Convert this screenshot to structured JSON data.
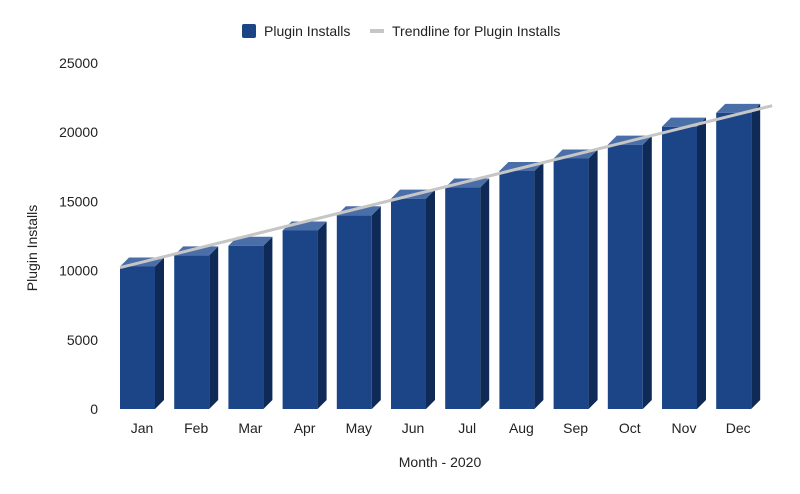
{
  "chart_data": {
    "type": "bar",
    "categories": [
      "Jan",
      "Feb",
      "Mar",
      "Apr",
      "May",
      "Jun",
      "Jul",
      "Aug",
      "Sep",
      "Oct",
      "Nov",
      "Dec"
    ],
    "series": [
      {
        "name": "Plugin Installs",
        "values": [
          10300,
          11100,
          11800,
          12900,
          14000,
          15200,
          16000,
          17200,
          18100,
          19100,
          20400,
          21400
        ]
      }
    ],
    "trendline": {
      "name": "Trendline for Plugin Installs",
      "start": 10000,
      "end": 21700
    },
    "xlabel": "Month - 2020",
    "ylabel": "Plugin Installs",
    "ylim": [
      0,
      25000
    ],
    "yticks": [
      0,
      5000,
      10000,
      15000,
      20000,
      25000
    ],
    "legend": "top",
    "grid": false,
    "colors": {
      "bar_front": "#1c4587",
      "bar_side": "#0f2a56",
      "bar_top": "#4a6fa8",
      "trendline": "#c6c6c6"
    }
  }
}
